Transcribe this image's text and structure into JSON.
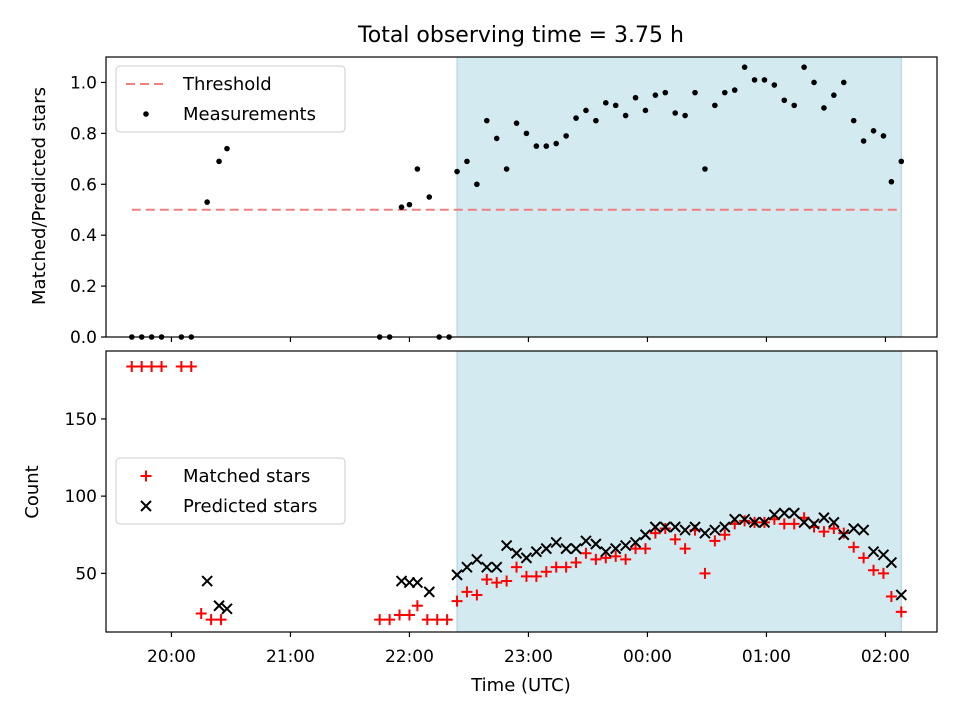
{
  "chart_data": [
    {
      "type": "scatter",
      "title": "Total observing time = 3.75 h",
      "xlabel": "",
      "ylabel": "Matched/Predicted stars",
      "xlim": [
        "19:27",
        "02:26"
      ],
      "ylim": [
        0,
        1.1
      ],
      "yticks": [
        "0.0",
        "0.2",
        "0.4",
        "0.6",
        "0.8",
        "1.0"
      ],
      "shaded_region": {
        "from": "22:24",
        "to": "02:08",
        "color": "#d3eaf0"
      },
      "threshold": {
        "name": "Threshold",
        "value": 0.5,
        "from": "19:40",
        "to": "02:08",
        "color": "#f08080",
        "style": "dashed"
      },
      "legend": {
        "position": "upper left",
        "entries": [
          "Threshold",
          "Measurements"
        ]
      },
      "series": [
        {
          "name": "Measurements",
          "marker": "dot",
          "color": "#000000",
          "x": [
            "19:40",
            "19:45",
            "19:50",
            "19:55",
            "20:05",
            "20:10",
            "20:18",
            "20:24",
            "20:28",
            "21:45",
            "21:50",
            "21:56",
            "22:00",
            "22:04",
            "22:10",
            "22:15",
            "22:20",
            "22:24",
            "22:29",
            "22:34",
            "22:39",
            "22:44",
            "22:49",
            "22:54",
            "22:59",
            "23:04",
            "23:09",
            "23:14",
            "23:19",
            "23:24",
            "23:29",
            "23:34",
            "23:39",
            "23:44",
            "23:49",
            "23:54",
            "23:59",
            "00:04",
            "00:09",
            "00:14",
            "00:19",
            "00:24",
            "00:29",
            "00:34",
            "00:39",
            "00:44",
            "00:49",
            "00:54",
            "00:59",
            "01:04",
            "01:09",
            "01:14",
            "01:19",
            "01:24",
            "01:29",
            "01:34",
            "01:39",
            "01:44",
            "01:49",
            "01:54",
            "01:59",
            "02:03",
            "02:08"
          ],
          "y": [
            0,
            0,
            0,
            0,
            0,
            0,
            0.53,
            0.69,
            0.74,
            0,
            0,
            0.51,
            0.52,
            0.66,
            0.55,
            0,
            0,
            0.65,
            0.69,
            0.6,
            0.85,
            0.78,
            0.66,
            0.84,
            0.8,
            0.75,
            0.75,
            0.76,
            0.79,
            0.86,
            0.89,
            0.85,
            0.92,
            0.91,
            0.87,
            0.94,
            0.89,
            0.95,
            0.96,
            0.88,
            0.87,
            0.96,
            0.66,
            0.91,
            0.96,
            0.97,
            1.06,
            1.01,
            1.01,
            0.99,
            0.93,
            0.91,
            1.06,
            1.0,
            0.9,
            0.95,
            1.0,
            0.85,
            0.77,
            0.81,
            0.79,
            0.61,
            0.69
          ]
        }
      ]
    },
    {
      "type": "scatter",
      "title": "",
      "xlabel": "Time (UTC)",
      "ylabel": "Count",
      "xlim": [
        "19:27",
        "02:26"
      ],
      "ylim": [
        12,
        194
      ],
      "xticks": [
        "20:00",
        "21:00",
        "22:00",
        "23:00",
        "00:00",
        "01:00",
        "02:00"
      ],
      "yticks": [
        "50",
        "100",
        "150"
      ],
      "shaded_region": {
        "from": "22:24",
        "to": "02:08",
        "color": "#d3eaf0"
      },
      "legend": {
        "position": "center left",
        "entries": [
          "Matched stars",
          "Predicted stars"
        ]
      },
      "series": [
        {
          "name": "Matched stars",
          "marker": "plus",
          "color": "#ff0000",
          "x": [
            "19:40",
            "19:45",
            "19:50",
            "19:55",
            "20:05",
            "20:10",
            "20:15",
            "20:20",
            "20:25",
            "21:45",
            "21:50",
            "21:55",
            "22:00",
            "22:04",
            "22:09",
            "22:14",
            "22:19",
            "22:24",
            "22:29",
            "22:34",
            "22:39",
            "22:44",
            "22:49",
            "22:54",
            "22:59",
            "23:04",
            "23:09",
            "23:14",
            "23:19",
            "23:24",
            "23:29",
            "23:34",
            "23:39",
            "23:44",
            "23:49",
            "23:54",
            "23:59",
            "00:04",
            "00:09",
            "00:14",
            "00:19",
            "00:24",
            "00:29",
            "00:34",
            "00:39",
            "00:44",
            "00:49",
            "00:54",
            "00:59",
            "01:04",
            "01:09",
            "01:14",
            "01:19",
            "01:24",
            "01:29",
            "01:34",
            "01:39",
            "01:44",
            "01:49",
            "01:54",
            "01:59",
            "02:03",
            "02:08"
          ],
          "y": [
            184,
            184,
            184,
            184,
            184,
            184,
            24,
            20,
            20,
            20,
            20,
            23,
            23,
            29,
            20,
            20,
            20,
            32,
            38,
            36,
            46,
            44,
            45,
            54,
            48,
            48,
            51,
            54,
            54,
            57,
            63,
            59,
            60,
            61,
            59,
            66,
            66,
            76,
            79,
            72,
            66,
            78,
            50,
            71,
            75,
            82,
            84,
            83,
            83,
            85,
            82,
            82,
            86,
            80,
            77,
            79,
            76,
            67,
            60,
            52,
            50,
            35,
            25
          ]
        },
        {
          "name": "Predicted stars",
          "marker": "x",
          "color": "#000000",
          "x": [
            "20:18",
            "20:24",
            "20:28",
            "21:56",
            "22:00",
            "22:04",
            "22:10",
            "22:24",
            "22:29",
            "22:34",
            "22:39",
            "22:44",
            "22:49",
            "22:54",
            "22:59",
            "23:04",
            "23:09",
            "23:14",
            "23:19",
            "23:24",
            "23:29",
            "23:34",
            "23:39",
            "23:44",
            "23:49",
            "23:54",
            "23:59",
            "00:04",
            "00:09",
            "00:14",
            "00:19",
            "00:24",
            "00:29",
            "00:34",
            "00:39",
            "00:44",
            "00:49",
            "00:54",
            "00:59",
            "01:04",
            "01:09",
            "01:14",
            "01:19",
            "01:24",
            "01:29",
            "01:34",
            "01:39",
            "01:44",
            "01:49",
            "01:54",
            "01:59",
            "02:03",
            "02:08"
          ],
          "y": [
            45,
            29,
            27,
            45,
            44,
            44,
            38,
            49,
            54,
            59,
            54,
            54,
            68,
            63,
            60,
            64,
            66,
            70,
            66,
            66,
            71,
            69,
            64,
            66,
            68,
            70,
            75,
            80,
            80,
            80,
            78,
            80,
            76,
            78,
            80,
            85,
            85,
            83,
            83,
            88,
            89,
            89,
            83,
            82,
            86,
            83,
            75,
            79,
            78,
            64,
            62,
            57,
            36
          ]
        }
      ]
    }
  ]
}
